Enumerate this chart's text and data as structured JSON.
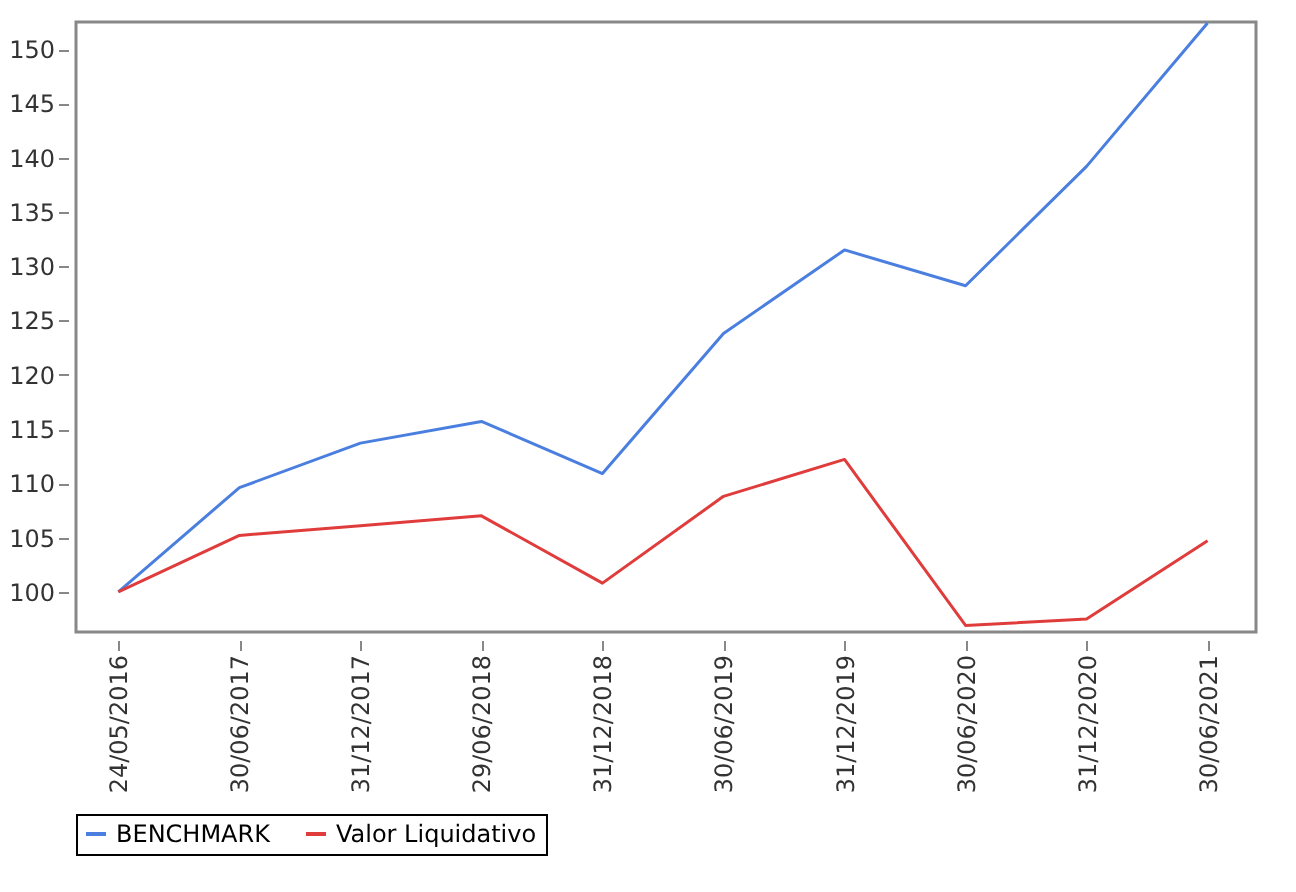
{
  "chart_data": {
    "type": "line",
    "categories": [
      "24/05/2016",
      "30/06/2017",
      "31/12/2017",
      "29/06/2018",
      "31/12/2018",
      "30/06/2019",
      "31/12/2019",
      "30/06/2020",
      "31/12/2020",
      "30/06/2021"
    ],
    "series": [
      {
        "name": "BENCHMARK",
        "color": "#4a7fe0",
        "values": [
          100,
          109.6,
          113.7,
          115.7,
          110.9,
          123.8,
          131.5,
          128.2,
          139.2,
          152.4
        ]
      },
      {
        "name": "Valor Liquidativo",
        "color": "#e03c3c",
        "values": [
          100,
          105.2,
          106.1,
          107,
          100.8,
          108.8,
          112.2,
          96.9,
          97.5,
          104.7
        ]
      }
    ],
    "ylim": [
      96.3,
      152.5
    ],
    "yticks": [
      100,
      105,
      110,
      115,
      120,
      125,
      130,
      135,
      140,
      145,
      150
    ],
    "grid": false,
    "legend": "bottom",
    "marker": "none",
    "line_style": "solid"
  }
}
